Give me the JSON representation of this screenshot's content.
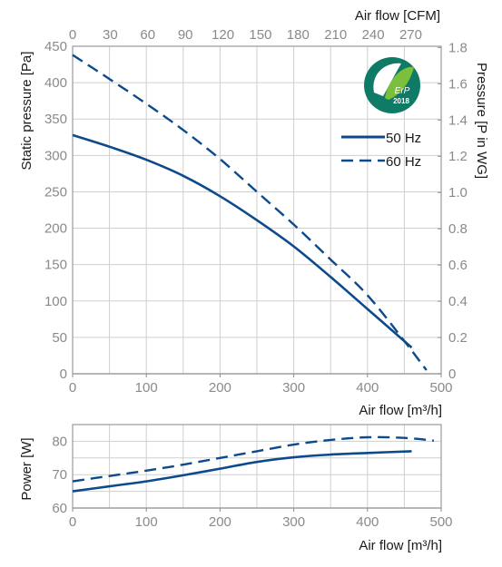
{
  "colors": {
    "series": "#0c4a8c",
    "grid": "#cfcfcf",
    "tick_text": "#8a8a8a",
    "badge_outer": "#0f7a66",
    "badge_inner": "#7cbf3c"
  },
  "badge": {
    "icon": "erp-leaf-badge",
    "label": "ErP",
    "year": "2018"
  },
  "chart_data": [
    {
      "type": "line",
      "name": "pressure-curve",
      "xlabel": "Air flow [m³/h]",
      "ylabel": "Static pressure [Pa]",
      "x2label": "Air flow [CFM]",
      "y2label": "Pressure [P in WG]",
      "xlim": [
        0,
        500
      ],
      "ylim": [
        0,
        450
      ],
      "x_ticks": [
        0,
        100,
        200,
        300,
        400,
        500
      ],
      "y_ticks": [
        0,
        50,
        100,
        150,
        200,
        250,
        300,
        350,
        400,
        450
      ],
      "x2_ticks": [
        "0",
        "30",
        "60",
        "90",
        "120",
        "150",
        "180",
        "210",
        "240",
        "270"
      ],
      "x2_per_x": 0.5886,
      "y2_ticks": [
        "0",
        "0.2",
        "0.4",
        "0.6",
        "0.8",
        "1.0",
        "1.2",
        "1.4",
        "1.6",
        "1.8"
      ],
      "y2_per_y": 0.004015,
      "grid": true,
      "legend_position": "top-right",
      "series": [
        {
          "name": "50 Hz",
          "style": "solid",
          "x": [
            0,
            50,
            100,
            150,
            200,
            250,
            300,
            350,
            400,
            460
          ],
          "y": [
            328,
            312,
            294,
            272,
            244,
            211,
            175,
            133,
            89,
            36
          ]
        },
        {
          "name": "60 Hz",
          "style": "dashed",
          "x": [
            0,
            50,
            100,
            150,
            200,
            250,
            300,
            350,
            400,
            450,
            480
          ],
          "y": [
            438,
            405,
            371,
            335,
            295,
            250,
            205,
            157,
            108,
            45,
            5
          ]
        }
      ]
    },
    {
      "type": "line",
      "name": "power-curve",
      "xlabel": "Air flow [m³/h]",
      "ylabel": "Power [W]",
      "xlim": [
        0,
        500
      ],
      "ylim": [
        60,
        85
      ],
      "x_ticks": [
        0,
        100,
        200,
        300,
        400,
        500
      ],
      "y_ticks": [
        60,
        70,
        80
      ],
      "grid": true,
      "series": [
        {
          "name": "50 Hz",
          "style": "solid",
          "x": [
            0,
            50,
            100,
            150,
            200,
            250,
            300,
            350,
            400,
            460
          ],
          "y": [
            65,
            66.5,
            68,
            69.8,
            71.8,
            73.8,
            75.2,
            76,
            76.5,
            77
          ]
        },
        {
          "name": "60 Hz",
          "style": "dashed",
          "x": [
            0,
            50,
            100,
            150,
            200,
            250,
            300,
            350,
            400,
            450,
            490
          ],
          "y": [
            68,
            69.6,
            71.2,
            73,
            75,
            77,
            79,
            80.4,
            81.2,
            81,
            80.2
          ]
        }
      ]
    }
  ]
}
